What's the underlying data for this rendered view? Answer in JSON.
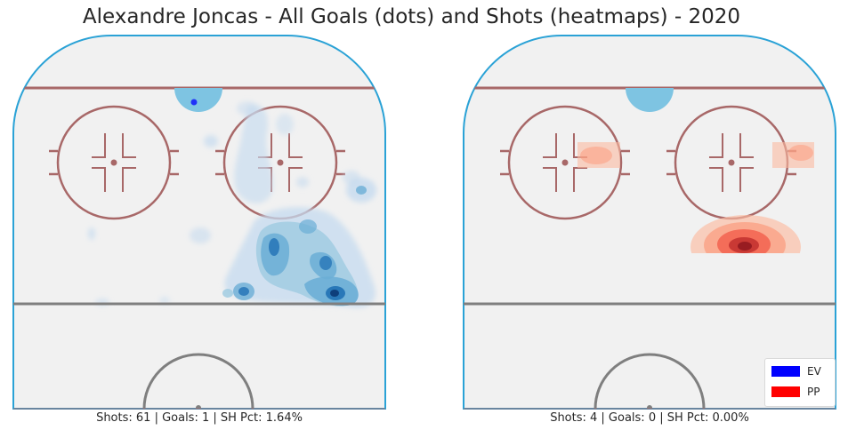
{
  "title": "Alexandre Joncas - All Goals (dots) and Shots (heatmaps) - 2020",
  "colors": {
    "ice": "#f1f1f1",
    "boards": "#2aa2d6",
    "red_line": "#a86868",
    "blue_line": "#7f7f7f",
    "crease": "#7ec4e2",
    "ev": "#0000ff",
    "pp": "#ff0000"
  },
  "legend": [
    {
      "label": "EV",
      "color": "#0000ff"
    },
    {
      "label": "PP",
      "color": "#ff0000"
    }
  ],
  "chart_data": [
    {
      "type": "heatmap",
      "panel": "left",
      "caption": "Shots: 61 | Goals: 1 | SH Pct: 1.64%",
      "strength": "EV",
      "shots": 61,
      "goals": 1,
      "sh_pct": "1.64%",
      "colormap": "Blues",
      "hotspots": [
        {
          "x": 0.72,
          "y": 0.56,
          "weight": 0.75
        },
        {
          "x": 0.84,
          "y": 0.61,
          "weight": 0.7
        },
        {
          "x": 0.87,
          "y": 0.69,
          "weight": 0.9
        },
        {
          "x": 0.64,
          "y": 0.68,
          "weight": 0.55
        },
        {
          "x": 0.81,
          "y": 0.51,
          "weight": 0.4
        },
        {
          "x": 0.93,
          "y": 0.4,
          "weight": 0.35
        },
        {
          "x": 0.71,
          "y": 0.29,
          "weight": 0.2
        },
        {
          "x": 0.53,
          "y": 0.56,
          "weight": 0.15
        },
        {
          "x": 0.53,
          "y": 0.26,
          "weight": 0.2
        }
      ],
      "goal_points": [
        {
          "x": 0.49,
          "y": 0.18
        }
      ]
    },
    {
      "type": "heatmap",
      "panel": "right",
      "caption": "Shots: 4 | Goals: 0 | SH Pct: 0.00%",
      "strength": "PP",
      "shots": 4,
      "goals": 0,
      "sh_pct": "0.00%",
      "colormap": "Reds",
      "hotspots": [
        {
          "x": 0.76,
          "y": 0.56,
          "weight": 1.0
        },
        {
          "x": 0.31,
          "y": 0.32,
          "weight": 0.35
        },
        {
          "x": 0.93,
          "y": 0.31,
          "weight": 0.35
        }
      ],
      "goal_points": []
    }
  ]
}
